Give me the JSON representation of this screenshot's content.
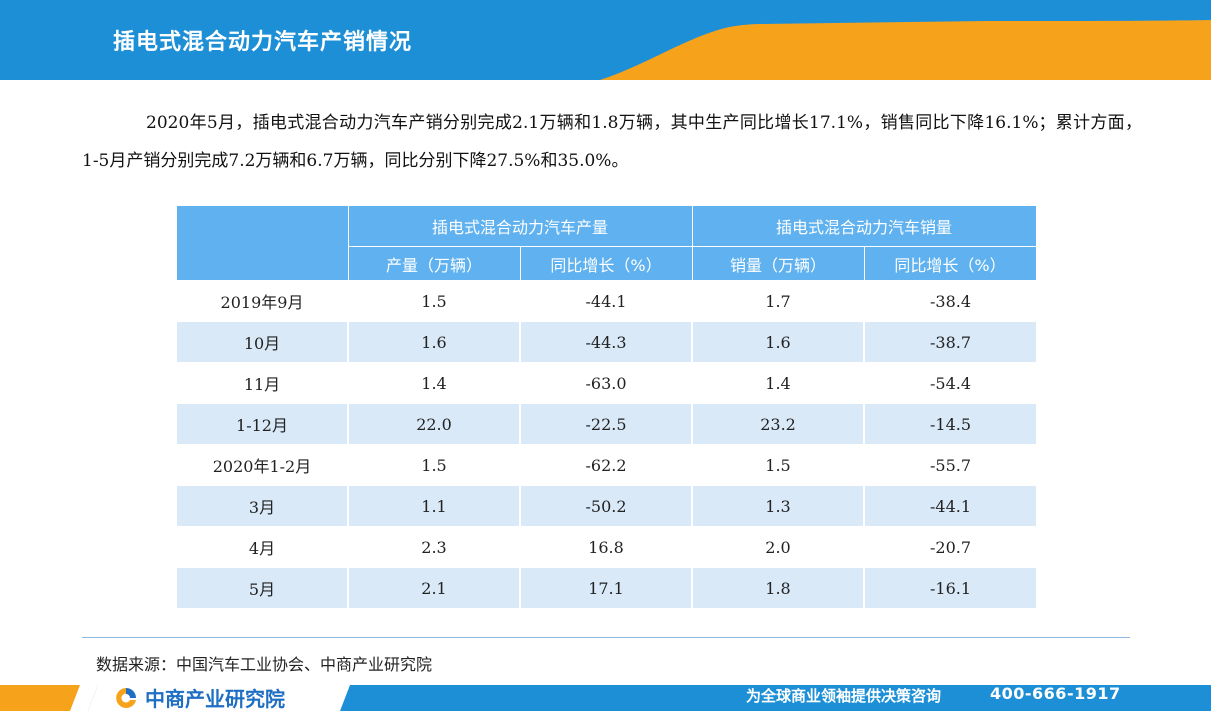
{
  "title": "插电式混合动力汽车产销情况",
  "summary": "2020年5月，插电式混合动力汽车产销分别完成2.1万辆和1.8万辆，其中生产同比增长17.1%，销售同比下降16.1%；累计方面，1-5月产销分别完成7.2万辆和6.7万辆，同比分别下降27.5%和35.0%。",
  "table": {
    "group_headers": [
      "插电式混合动力汽车产量",
      "插电式混合动力汽车销量"
    ],
    "sub_headers": [
      "产量（万辆）",
      "同比增长（%）",
      "销量（万辆）",
      "同比增长（%）"
    ],
    "rows": [
      {
        "period": "2019年9月",
        "production": "1.5",
        "production_yoy": "-44.1",
        "sales": "1.7",
        "sales_yoy": "-38.4"
      },
      {
        "period": "10月",
        "production": "1.6",
        "production_yoy": "-44.3",
        "sales": "1.6",
        "sales_yoy": "-38.7"
      },
      {
        "period": "11月",
        "production": "1.4",
        "production_yoy": "-63.0",
        "sales": "1.4",
        "sales_yoy": "-54.4"
      },
      {
        "period": "1-12月",
        "production": "22.0",
        "production_yoy": "-22.5",
        "sales": "23.2",
        "sales_yoy": "-14.5"
      },
      {
        "period": "2020年1-2月",
        "production": "1.5",
        "production_yoy": "-62.2",
        "sales": "1.5",
        "sales_yoy": "-55.7"
      },
      {
        "period": "3月",
        "production": "1.1",
        "production_yoy": "-50.2",
        "sales": "1.3",
        "sales_yoy": "-44.1"
      },
      {
        "period": "4月",
        "production": "2.3",
        "production_yoy": "16.8",
        "sales": "2.0",
        "sales_yoy": "-20.7"
      },
      {
        "period": "5月",
        "production": "2.1",
        "production_yoy": "17.1",
        "sales": "1.8",
        "sales_yoy": "-16.1"
      }
    ]
  },
  "source": "数据来源：中国汽车工业协会、中商产业研究院",
  "footer": {
    "logo_text": "中商产业研究院",
    "slogan": "为全球商业领袖提供决策咨询",
    "phone": "400-666-1917"
  },
  "colors": {
    "header_blue": "#1d8fd6",
    "accent_orange": "#f7a21b",
    "table_header": "#5fb1ef",
    "table_stripe": "#d9e9f8"
  }
}
